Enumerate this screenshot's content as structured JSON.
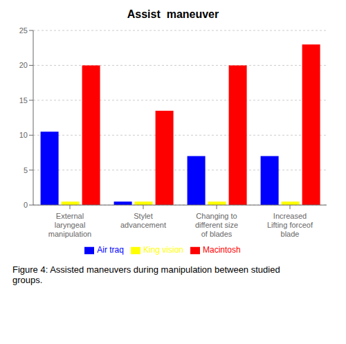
{
  "chart_data": {
    "type": "bar",
    "title": "Assist  maneuver",
    "categories": [
      "External\nlaryngeal\nmanipulation",
      "Stylet\nadvancement",
      "Changing to\ndifferent size\nof blades",
      "Increased\nLifting forceof\nblade"
    ],
    "series": [
      {
        "name": "Air traq",
        "color": "#0000ff",
        "values": [
          10.5,
          0.5,
          7.0,
          7.0
        ]
      },
      {
        "name": "King vision",
        "color": "#ffff00",
        "values": [
          0.5,
          0.5,
          0.5,
          0.5
        ]
      },
      {
        "name": "Macintosh",
        "color": "#ff0000",
        "values": [
          20.0,
          13.5,
          20.0,
          23.0
        ]
      }
    ],
    "ylim": [
      0,
      25
    ],
    "yticks": [
      0,
      5,
      10,
      15,
      20,
      25
    ],
    "grid": true,
    "legend": "bottom",
    "annotations": [
      "Figure 4: Assisted maneuvers during manipulation between studied\ngroups."
    ]
  }
}
